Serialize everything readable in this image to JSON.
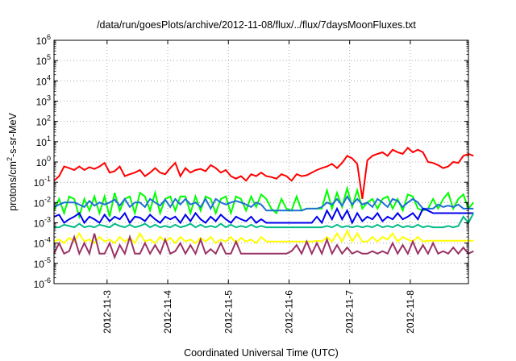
{
  "chart_data": {
    "type": "line",
    "title": "/data/run/goesPlots/archive/2012-11-08/flux/../flux/7daysMoonFluxes.txt",
    "xlabel": "Coordinated Universal Time (UTC)",
    "ylabel_prefix": "protons/cm",
    "ylabel_sup": "2",
    "ylabel_suffix": "-s-sr-MeV",
    "yscale": "log",
    "ylim": [
      1e-06,
      1000000.0
    ],
    "xlim": [
      "2012-11-02 03:00",
      "2012-11-08 23:00"
    ],
    "grid": true,
    "legend": "none",
    "y_ticks": [
      {
        "base": "10",
        "exp": "6"
      },
      {
        "base": "10",
        "exp": "5"
      },
      {
        "base": "10",
        "exp": "4"
      },
      {
        "base": "10",
        "exp": "3"
      },
      {
        "base": "10",
        "exp": "2"
      },
      {
        "base": "10",
        "exp": "1"
      },
      {
        "base": "10",
        "exp": "0"
      },
      {
        "base": "10",
        "exp": "-1"
      },
      {
        "base": "10",
        "exp": "-2"
      },
      {
        "base": "10",
        "exp": "-3"
      },
      {
        "base": "10",
        "exp": "-4"
      },
      {
        "base": "10",
        "exp": "-5"
      },
      {
        "base": "10",
        "exp": "-6"
      }
    ],
    "x_ticks": [
      "2012-11-3",
      "2012-11-4",
      "2012-11-5",
      "2012-11-6",
      "2012-11-7",
      "2012-11-8"
    ],
    "x_ticks_hours": [
      21,
      45,
      69,
      93,
      117,
      141
    ],
    "x_hours": [
      0,
      2,
      4,
      6,
      8,
      10,
      12,
      14,
      16,
      18,
      20,
      22,
      24,
      26,
      28,
      30,
      32,
      34,
      36,
      38,
      40,
      42,
      44,
      46,
      48,
      50,
      52,
      54,
      56,
      58,
      60,
      62,
      64,
      66,
      68,
      70,
      72,
      74,
      76,
      78,
      80,
      82,
      84,
      86,
      88,
      90,
      92,
      94,
      96,
      98,
      100,
      102,
      104,
      106,
      108,
      110,
      112,
      114,
      116,
      118,
      120,
      122,
      124,
      126,
      128,
      130,
      132,
      134,
      136,
      138,
      140,
      142,
      144,
      146,
      148,
      150,
      152,
      154,
      156,
      158,
      160,
      162,
      164,
      166
    ],
    "series": [
      {
        "color": "#ff0000",
        "values": [
          0.12,
          0.2,
          0.6,
          0.5,
          0.4,
          0.6,
          0.4,
          0.55,
          0.45,
          0.6,
          0.9,
          0.3,
          0.35,
          0.6,
          0.2,
          0.25,
          0.3,
          0.4,
          0.2,
          0.3,
          0.5,
          0.3,
          0.25,
          0.5,
          0.9,
          0.2,
          0.5,
          0.3,
          0.4,
          0.45,
          0.35,
          0.7,
          0.5,
          0.3,
          0.4,
          0.2,
          0.15,
          0.2,
          0.12,
          0.25,
          0.2,
          0.3,
          0.2,
          0.18,
          0.15,
          0.25,
          0.2,
          0.12,
          0.25,
          0.2,
          0.22,
          0.3,
          0.4,
          0.5,
          0.6,
          0.8,
          0.5,
          0.9,
          2.0,
          1.5,
          0.8,
          0.015,
          1.2,
          2.0,
          2.5,
          3.0,
          2.0,
          4.0,
          3.0,
          2.5,
          5.0,
          3.0,
          4.0,
          3.0,
          1.0,
          0.9,
          0.7,
          0.5,
          0.6,
          1.0,
          0.9,
          2.0,
          2.5,
          2.0
        ]
      },
      {
        "color": "#00ff00",
        "values": [
          0.004,
          0.015,
          0.003,
          0.02,
          0.015,
          0.002,
          0.015,
          0.004,
          0.02,
          0.003,
          0.02,
          0.002,
          0.03,
          0.004,
          0.015,
          0.02,
          0.003,
          0.03,
          0.02,
          0.004,
          0.03,
          0.003,
          0.015,
          0.02,
          0.004,
          0.02,
          0.02,
          0.003,
          0.02,
          0.004,
          0.02,
          0.015,
          0.003,
          0.015,
          0.02,
          0.003,
          0.02,
          0.015,
          0.004,
          0.02,
          0.006,
          0.025,
          0.015,
          0.005,
          0.003,
          0.015,
          0.005,
          0.004,
          0.02,
          0.004,
          0.005,
          0.005,
          0.005,
          0.005,
          0.04,
          0.005,
          0.03,
          0.006,
          0.05,
          0.006,
          0.04,
          0.005,
          0.01,
          0.015,
          0.005,
          0.015,
          0.02,
          0.005,
          0.015,
          0.004,
          0.025,
          0.02,
          0.005,
          0.004,
          0.005,
          0.015,
          0.005,
          0.015,
          0.03,
          0.005,
          0.015,
          0.025,
          0.005,
          0.01
        ]
      },
      {
        "color": "#1f6fd6",
        "values": [
          0.006,
          0.008,
          0.01,
          0.01,
          0.01,
          0.008,
          0.006,
          0.012,
          0.007,
          0.01,
          0.008,
          0.01,
          0.014,
          0.007,
          0.015,
          0.006,
          0.01,
          0.01,
          0.006,
          0.015,
          0.01,
          0.007,
          0.014,
          0.006,
          0.015,
          0.008,
          0.015,
          0.008,
          0.01,
          0.006,
          0.015,
          0.005,
          0.015,
          0.01,
          0.008,
          0.01,
          0.012,
          0.01,
          0.008,
          0.006,
          0.01,
          0.008,
          0.004,
          0.004,
          0.004,
          0.004,
          0.004,
          0.004,
          0.004,
          0.004,
          0.005,
          0.005,
          0.005,
          0.006,
          0.01,
          0.008,
          0.015,
          0.007,
          0.02,
          0.008,
          0.015,
          0.008,
          0.01,
          0.006,
          0.015,
          0.01,
          0.006,
          0.015,
          0.012,
          0.006,
          0.01,
          0.015,
          0.01,
          0.005,
          0.005,
          0.005,
          0.008,
          0.006,
          0.007,
          0.006,
          0.008,
          0.005,
          0.005,
          0.005
        ]
      },
      {
        "color": "#0000ee",
        "values": [
          0.002,
          0.0025,
          0.001,
          0.0015,
          0.002,
          0.003,
          0.001,
          0.002,
          0.0015,
          0.001,
          0.0025,
          0.0012,
          0.002,
          0.0015,
          0.003,
          0.001,
          0.002,
          0.0018,
          0.0012,
          0.0025,
          0.0015,
          0.001,
          0.002,
          0.0015,
          0.002,
          0.001,
          0.0025,
          0.0012,
          0.003,
          0.0015,
          0.001,
          0.002,
          0.0012,
          0.0025,
          0.0015,
          0.001,
          0.002,
          0.0015,
          0.0012,
          0.002,
          0.001,
          0.0015,
          0.001,
          0.001,
          0.001,
          0.001,
          0.001,
          0.001,
          0.001,
          0.001,
          0.001,
          0.001,
          0.002,
          0.001,
          0.004,
          0.0015,
          0.005,
          0.0015,
          0.004,
          0.001,
          0.003,
          0.0012,
          0.002,
          0.0015,
          0.003,
          0.0012,
          0.002,
          0.0015,
          0.003,
          0.0015,
          0.002,
          0.003,
          0.0015,
          0.005,
          0.004,
          0.003,
          0.003,
          0.003,
          0.003,
          0.003,
          0.003,
          0.003,
          0.003,
          0.003
        ]
      },
      {
        "color": "#00bb88",
        "values": [
          0.0006,
          0.0006,
          0.0008,
          0.0007,
          0.0006,
          0.0009,
          0.0006,
          0.0007,
          0.0006,
          0.0008,
          0.0007,
          0.0006,
          0.0009,
          0.0007,
          0.0006,
          0.0008,
          0.0006,
          0.0007,
          0.0009,
          0.0006,
          0.0008,
          0.0006,
          0.0007,
          0.0006,
          0.0008,
          0.0006,
          0.0007,
          0.0009,
          0.0006,
          0.0008,
          0.0006,
          0.0007,
          0.0006,
          0.0009,
          0.0006,
          0.0008,
          0.0006,
          0.0007,
          0.0006,
          0.0008,
          0.0006,
          0.0007,
          0.0006,
          0.0006,
          0.0006,
          0.0006,
          0.0006,
          0.0006,
          0.0006,
          0.0006,
          0.0006,
          0.0006,
          0.0006,
          0.0006,
          0.0007,
          0.0006,
          0.0008,
          0.0006,
          0.0007,
          0.0006,
          0.0007,
          0.0006,
          0.0007,
          0.0006,
          0.0008,
          0.0006,
          0.0007,
          0.0006,
          0.0008,
          0.0006,
          0.0007,
          0.0006,
          0.0008,
          0.0006,
          0.0007,
          0.0006,
          0.0006,
          0.0006,
          0.0007,
          0.0006,
          0.0007,
          0.002,
          0.001,
          0.003
        ]
      },
      {
        "color": "#ffff00",
        "values": [
          0.00012,
          0.00015,
          0.0001,
          0.00018,
          0.00012,
          0.0003,
          0.00012,
          0.00015,
          0.0001,
          0.0002,
          0.00012,
          0.00015,
          0.0001,
          0.0002,
          0.00012,
          0.00018,
          0.0001,
          0.0003,
          0.00012,
          0.00015,
          0.0001,
          0.0002,
          0.00012,
          0.00018,
          0.0001,
          0.0002,
          0.00012,
          0.00015,
          0.0001,
          0.00018,
          0.00012,
          0.0002,
          0.0001,
          0.00015,
          0.00012,
          0.0002,
          0.0001,
          0.00018,
          0.00012,
          0.00015,
          0.0001,
          0.0002,
          0.00012,
          0.00012,
          0.00012,
          0.00012,
          0.00012,
          0.00012,
          0.00012,
          0.00012,
          0.00012,
          0.00012,
          0.00013,
          0.00012,
          0.0002,
          0.00012,
          0.0003,
          0.00012,
          0.0004,
          0.00012,
          0.0003,
          0.00012,
          0.00012,
          0.0002,
          0.00012,
          0.0002,
          0.00015,
          0.0003,
          0.00012,
          0.0002,
          0.00015,
          0.00012,
          0.0002,
          0.00012,
          0.00013,
          0.00013,
          0.00013,
          0.00013,
          0.00013,
          0.00013,
          0.00013,
          0.00013,
          0.00013,
          0.00013
        ]
      },
      {
        "color": "#993366",
        "values": [
          3e-05,
          0.0001,
          3e-05,
          4e-05,
          0.0002,
          3e-05,
          0.0001,
          3e-05,
          0.0003,
          3e-05,
          3e-05,
          0.0001,
          2e-05,
          8e-05,
          3e-05,
          0.0002,
          3e-05,
          3e-05,
          0.0001,
          3e-05,
          8e-05,
          3e-05,
          0.00015,
          3e-05,
          4e-05,
          0.0001,
          3e-05,
          8e-05,
          3e-05,
          0.00015,
          3e-05,
          5e-05,
          3e-05,
          0.0001,
          3e-05,
          3e-05,
          0.00012,
          3e-05,
          3e-05,
          3e-05,
          3e-05,
          3e-05,
          3e-05,
          3e-05,
          3e-05,
          3e-05,
          3e-05,
          4e-05,
          8e-05,
          3e-05,
          0.00012,
          3e-05,
          0.0001,
          3e-05,
          0.00015,
          3e-05,
          8e-05,
          3e-05,
          6e-05,
          3e-05,
          4e-05,
          3e-05,
          3e-05,
          4e-05,
          3e-05,
          4e-05,
          3e-05,
          0.0001,
          3e-05,
          8e-05,
          3e-05,
          0.00012,
          3e-05,
          8e-05,
          3e-05,
          0.0001,
          3e-05,
          4e-05,
          3e-05,
          6e-05,
          3e-05,
          6e-05,
          3e-05,
          4e-05
        ]
      }
    ]
  }
}
